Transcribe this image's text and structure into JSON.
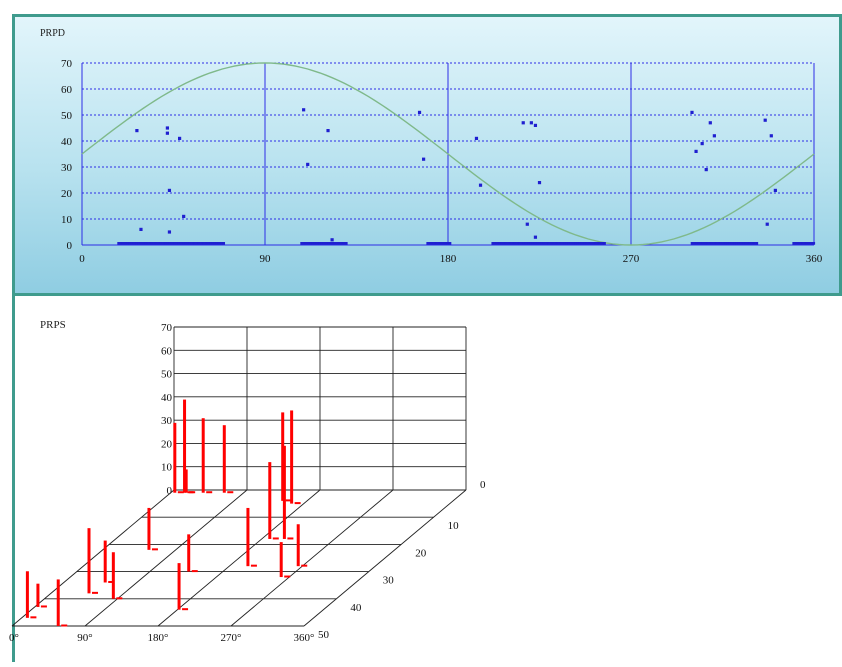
{
  "chart_data": [
    {
      "type": "scatter",
      "title": "PRPD",
      "xlim": [
        0,
        360
      ],
      "ylim": [
        0,
        70
      ],
      "x_ticks": [
        "0",
        "90",
        "180",
        "270",
        "360"
      ],
      "y_ticks": [
        "0",
        "10",
        "20",
        "30",
        "40",
        "50",
        "60",
        "70"
      ],
      "grid": true,
      "reference_curve": {
        "type": "sine",
        "amplitude": 35,
        "offset": 35,
        "color": "#7fb98a"
      },
      "point_color": "#1f1fd0",
      "points": [
        [
          27,
          44
        ],
        [
          29,
          6
        ],
        [
          42,
          45
        ],
        [
          42,
          43
        ],
        [
          43,
          21
        ],
        [
          43,
          5
        ],
        [
          48,
          41
        ],
        [
          50,
          11
        ],
        [
          109,
          52
        ],
        [
          111,
          31
        ],
        [
          121,
          44
        ],
        [
          123,
          2
        ],
        [
          166,
          51
        ],
        [
          168,
          33
        ],
        [
          194,
          41
        ],
        [
          196,
          23
        ],
        [
          217,
          47
        ],
        [
          219,
          8
        ],
        [
          221,
          47
        ],
        [
          223,
          46
        ],
        [
          223,
          3
        ],
        [
          225,
          24
        ],
        [
          300,
          51
        ],
        [
          302,
          36
        ],
        [
          305,
          39
        ],
        [
          307,
          29
        ],
        [
          309,
          47
        ],
        [
          311,
          42
        ],
        [
          336,
          48
        ],
        [
          337,
          8
        ],
        [
          339,
          42
        ],
        [
          341,
          21
        ]
      ],
      "baseline_clusters": [
        [
          18,
          70
        ],
        [
          108,
          130
        ],
        [
          170,
          182
        ],
        [
          202,
          258
        ],
        [
          300,
          332
        ],
        [
          350,
          360
        ]
      ]
    },
    {
      "type": "bar3d",
      "title": "PRPS",
      "z_ticks": [
        "0",
        "10",
        "20",
        "30",
        "40",
        "50",
        "60",
        "70"
      ],
      "phase_ticks": [
        "0°",
        "90°",
        "180°",
        "270°",
        "360°"
      ],
      "cycle_ticks": [
        "0",
        "10",
        "20",
        "30",
        "40",
        "50"
      ],
      "bar_color": "#ff0000",
      "bars": [
        {
          "phase": 5,
          "cycle": 1,
          "value": 30
        },
        {
          "phase": 17,
          "cycle": 1,
          "value": 40
        },
        {
          "phase": 19,
          "cycle": 1,
          "value": 10
        },
        {
          "phase": 40,
          "cycle": 1,
          "value": 32
        },
        {
          "phase": 66,
          "cycle": 1,
          "value": 29
        },
        {
          "phase": 150,
          "cycle": 4,
          "value": 38
        },
        {
          "phase": 165,
          "cycle": 5,
          "value": 40
        },
        {
          "phase": 190,
          "cycle": 18,
          "value": 33
        },
        {
          "phase": 208,
          "cycle": 18,
          "value": 40
        },
        {
          "phase": 57,
          "cycle": 22,
          "value": 18
        },
        {
          "phase": 51,
          "cycle": 34,
          "value": 18
        },
        {
          "phase": 138,
          "cycle": 30,
          "value": 16
        },
        {
          "phase": 203,
          "cycle": 28,
          "value": 25
        },
        {
          "phase": 265,
          "cycle": 28,
          "value": 18
        },
        {
          "phase": 260,
          "cycle": 32,
          "value": 15
        },
        {
          "phase": 182,
          "cycle": 44,
          "value": 20
        },
        {
          "phase": 57,
          "cycle": 50,
          "value": 20
        },
        {
          "phase": 4,
          "cycle": 43,
          "value": 10
        },
        {
          "phase": 7,
          "cycle": 47,
          "value": 20
        },
        {
          "phase": 47,
          "cycle": 38,
          "value": 28
        },
        {
          "phase": 85,
          "cycle": 40,
          "value": 20
        }
      ]
    }
  ]
}
